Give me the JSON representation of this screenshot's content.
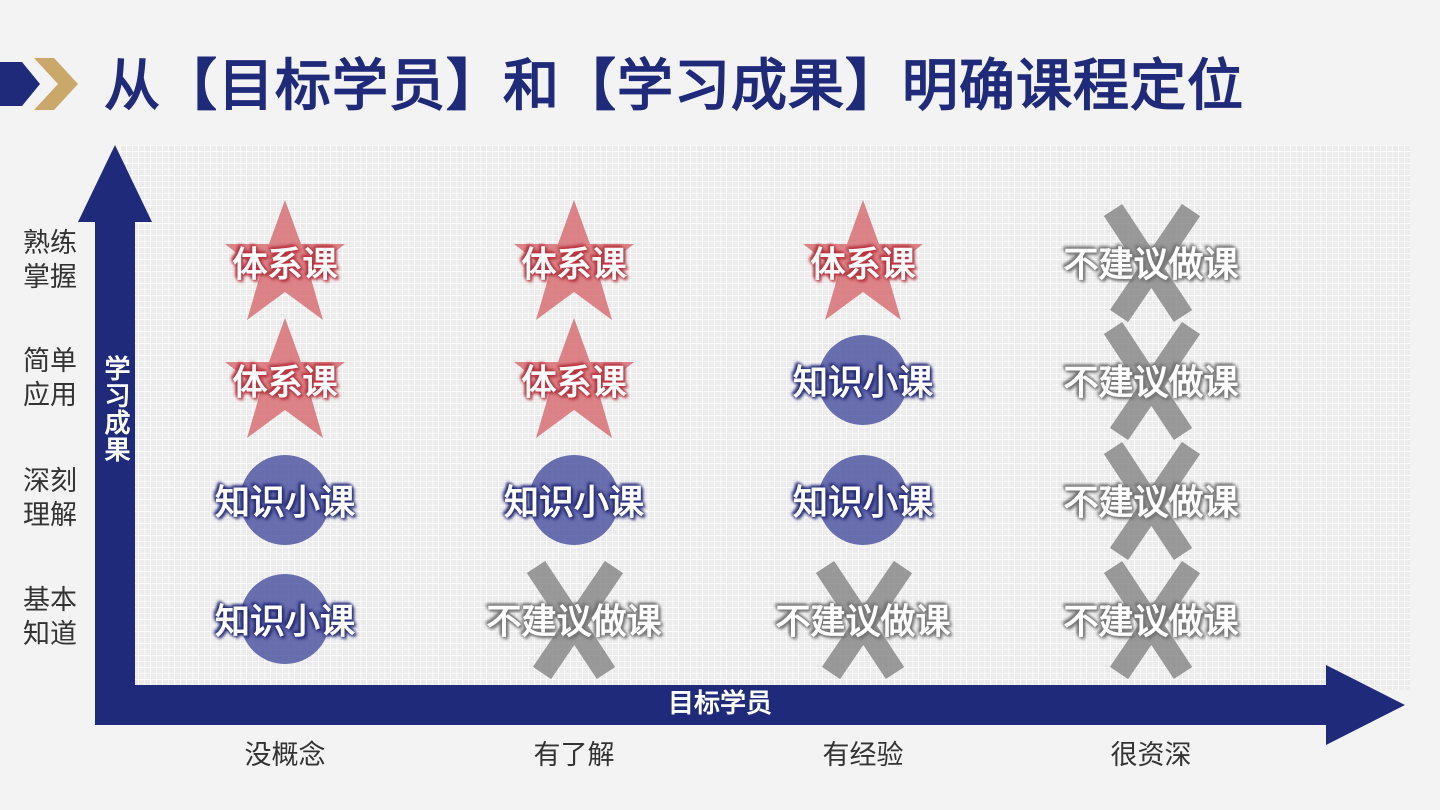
{
  "title": "从【目标学员】和【学习成果】明确课程定位",
  "colors": {
    "navy": "#1f2a7a",
    "gold": "#c9a86a",
    "star_red": "#d9777c",
    "circle_blue": "#5a5fa6",
    "cross_gray": "#8a8a8a"
  },
  "axes": {
    "y_title": "学习成果",
    "x_title": "目标学员"
  },
  "rows": [
    {
      "label": "熟练\n掌握"
    },
    {
      "label": "简单\n应用"
    },
    {
      "label": "深刻\n理解"
    },
    {
      "label": "基本\n知道"
    }
  ],
  "columns": [
    {
      "label": "没概念"
    },
    {
      "label": "有了解"
    },
    {
      "label": "有经验"
    },
    {
      "label": "很资深"
    }
  ],
  "grid": [
    [
      {
        "icon": "star-icon",
        "text": "体系课"
      },
      {
        "icon": "star-icon",
        "text": "体系课"
      },
      {
        "icon": "star-icon",
        "text": "体系课"
      },
      {
        "icon": "cross-icon",
        "text": "不建议做课"
      }
    ],
    [
      {
        "icon": "star-icon",
        "text": "体系课"
      },
      {
        "icon": "star-icon",
        "text": "体系课"
      },
      {
        "icon": "circle-icon",
        "text": "知识小课"
      },
      {
        "icon": "cross-icon",
        "text": "不建议做课"
      }
    ],
    [
      {
        "icon": "circle-icon",
        "text": "知识小课"
      },
      {
        "icon": "circle-icon",
        "text": "知识小课"
      },
      {
        "icon": "circle-icon",
        "text": "知识小课"
      },
      {
        "icon": "cross-icon",
        "text": "不建议做课"
      }
    ],
    [
      {
        "icon": "circle-icon",
        "text": "知识小课"
      },
      {
        "icon": "cross-icon",
        "text": "不建议做课"
      },
      {
        "icon": "cross-icon",
        "text": "不建议做课"
      },
      {
        "icon": "cross-icon",
        "text": "不建议做课"
      }
    ]
  ]
}
